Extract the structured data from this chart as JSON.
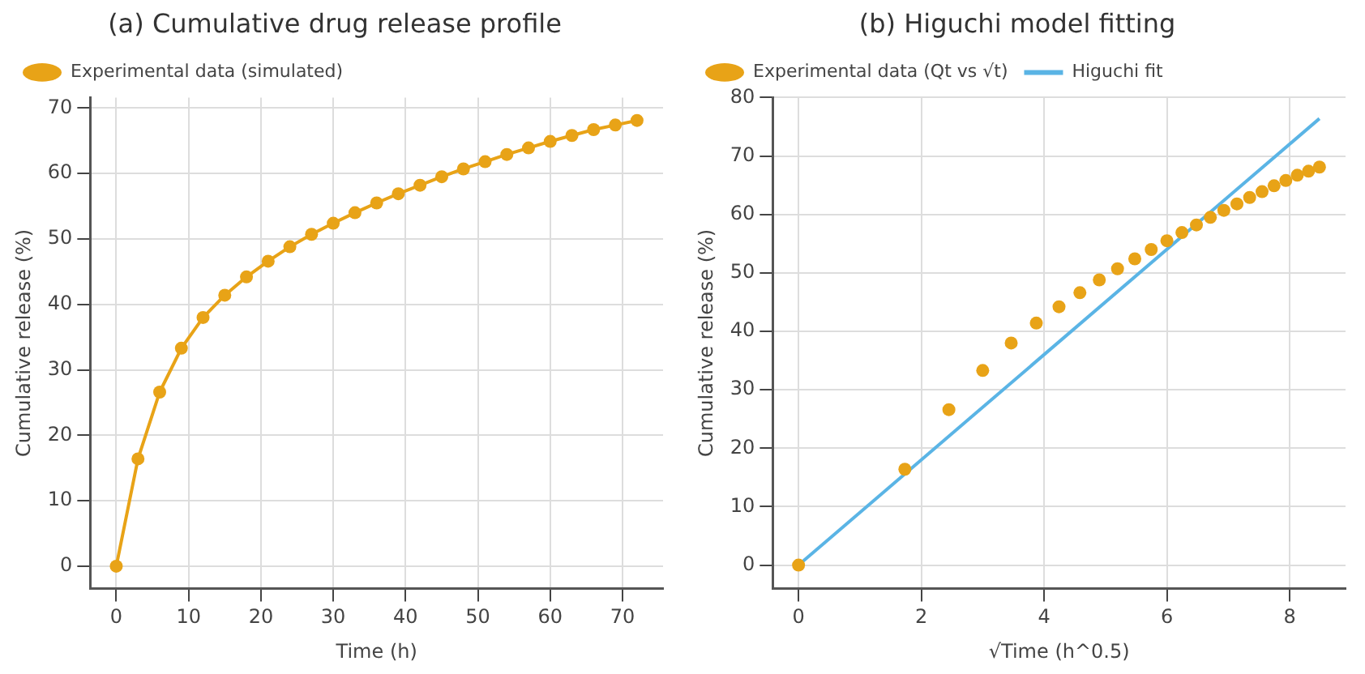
{
  "chart_data": [
    {
      "type": "line",
      "title": "(a) Cumulative drug release profile",
      "xlabel": "Time (h)",
      "ylabel": "Cumulative release (%)",
      "x": [
        0,
        3,
        6,
        9,
        12,
        15,
        18,
        21,
        24,
        27,
        30,
        33,
        36,
        39,
        42,
        45,
        48,
        51,
        54,
        57,
        60,
        63,
        66,
        69,
        72
      ],
      "series": [
        {
          "name": "Experimental data (simulated)",
          "color": "#e8a317",
          "values": [
            0,
            16.4,
            26.6,
            33.3,
            38,
            41.4,
            44.2,
            46.6,
            48.8,
            50.7,
            52.4,
            54,
            55.5,
            56.9,
            58.2,
            59.5,
            60.7,
            61.8,
            62.9,
            63.9,
            64.9,
            65.8,
            66.7,
            67.4,
            68.1
          ]
        }
      ],
      "xlim": [
        -3.6,
        75.6
      ],
      "xticks": [
        0,
        10,
        20,
        30,
        40,
        50,
        60,
        70
      ],
      "ylim": [
        -3.4,
        71.6
      ],
      "yticks": [
        0,
        10,
        20,
        30,
        40,
        50,
        60,
        70
      ],
      "grid": true,
      "legend": "top left",
      "marker": "circle",
      "line_style": "solid"
    },
    {
      "type": "scatter",
      "title": "(b) Higuchi model fitting",
      "xlabel": "√Time (h^0.5)",
      "ylabel": "Cumulative release (%)",
      "series": [
        {
          "name": "Experimental data (Qt vs √t)",
          "type": "scatter",
          "color": "#e8a317",
          "marker": "circle",
          "x": [
            0,
            1.732,
            2.449,
            3,
            3.464,
            3.873,
            4.243,
            4.583,
            4.899,
            5.196,
            5.477,
            5.745,
            6,
            6.245,
            6.481,
            6.708,
            6.928,
            7.141,
            7.348,
            7.55,
            7.746,
            7.937,
            8.124,
            8.307,
            8.485
          ],
          "values": [
            0,
            16.4,
            26.6,
            33.3,
            38,
            41.4,
            44.2,
            46.6,
            48.8,
            50.7,
            52.4,
            54,
            55.5,
            56.9,
            58.2,
            59.5,
            60.7,
            61.8,
            62.9,
            63.9,
            64.9,
            65.8,
            66.7,
            67.4,
            68.1
          ]
        },
        {
          "name": "Higuchi fit",
          "type": "line",
          "color": "#5ab4e5",
          "marker": "none",
          "x": [
            0,
            8.485
          ],
          "values": [
            0,
            76.4
          ]
        }
      ],
      "xlim": [
        -0.42,
        8.91
      ],
      "xticks": [
        0,
        2,
        4,
        6,
        8
      ],
      "ylim": [
        -4,
        80
      ],
      "yticks": [
        0,
        10,
        20,
        30,
        40,
        50,
        60,
        70,
        80
      ],
      "grid": true,
      "legend": "top left"
    }
  ]
}
